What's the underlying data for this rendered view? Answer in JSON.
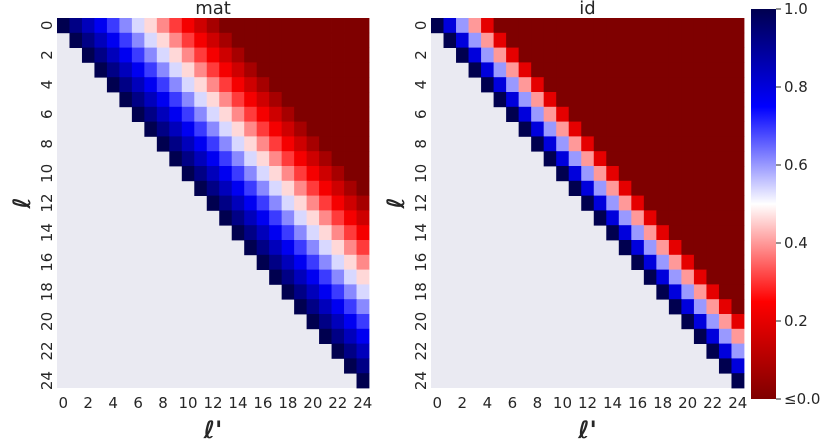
{
  "chart_data": {
    "type": "heatmap",
    "n": 25,
    "panels": [
      {
        "title": "mat",
        "xlabel": "ℓ'",
        "ylabel": "ℓ",
        "decay": 13.0,
        "mode": "linear"
      },
      {
        "title": "id",
        "xlabel": "ℓ'",
        "ylabel": "ℓ",
        "decay": 5.0,
        "mode": "linear"
      }
    ],
    "tick_labels": [
      "0",
      "2",
      "4",
      "6",
      "8",
      "10",
      "12",
      "14",
      "16",
      "18",
      "20",
      "22",
      "24"
    ],
    "colorbar": {
      "ticks": [
        "≤0.0",
        "0.2",
        "0.4",
        "0.6",
        "0.8",
        "1.0"
      ],
      "min": 0.0,
      "max": 1.0,
      "colormap": [
        "#7f0000",
        "#ff0000",
        "#ffffff",
        "#0000ff",
        "#00004f"
      ]
    },
    "mask_color": "#eaeaf2",
    "description_note": "upper-triangular matrices: value decreases with distance (ℓ'-ℓ); lower triangle masked"
  }
}
